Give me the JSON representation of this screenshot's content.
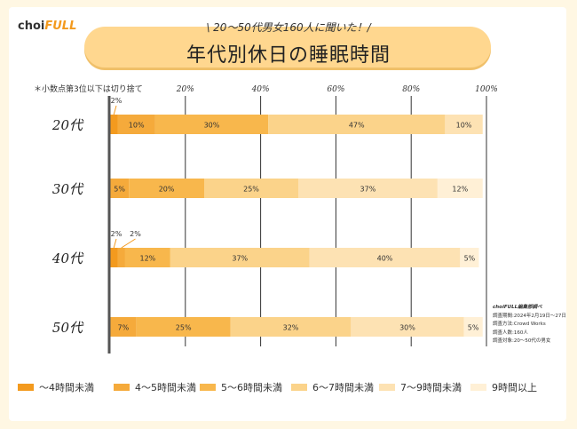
{
  "logo": {
    "text_main": "choi",
    "text_accent": "FULL"
  },
  "header": {
    "subtitle": "\\ 20〜50代男女160人に聞いた！/",
    "title": "年代別休日の睡眠時間"
  },
  "note": "＊小数点第3位以下は切り捨て",
  "attribution": [
    "choiFULL編集部調べ",
    "調査期間:2024年2月19日〜27日",
    "調査方法:Crowd Works",
    "調査人数:160人",
    "調査対象:20〜50代の男女"
  ],
  "colors": {
    "background": "#fff7e3",
    "axis": "#555555",
    "grid": "#333333"
  },
  "chart_data": {
    "type": "bar",
    "orientation": "horizontal",
    "stacked": true,
    "categories": [
      "20代",
      "30代",
      "40代",
      "50代"
    ],
    "x_ticks": [
      "20%",
      "40%",
      "60%",
      "80%",
      "100%"
    ],
    "xlim": [
      0,
      100
    ],
    "series": [
      {
        "name": "〜4時間未満",
        "color": "#f39a1e",
        "values": [
          2,
          0,
          2,
          0
        ],
        "labels": [
          "2%",
          "",
          "2%",
          ""
        ]
      },
      {
        "name": "4〜5時間未満",
        "color": "#f5aa3b",
        "values": [
          10,
          5,
          2,
          7
        ],
        "labels": [
          "10%",
          "5%",
          "2%",
          "7%"
        ]
      },
      {
        "name": "5〜6時間未満",
        "color": "#f8b74c",
        "values": [
          30,
          20,
          12,
          25
        ],
        "labels": [
          "30%",
          "20%",
          "12%",
          "25%"
        ]
      },
      {
        "name": "6〜7時間未満",
        "color": "#fbd38a",
        "values": [
          47,
          25,
          37,
          32
        ],
        "labels": [
          "47%",
          "25%",
          "37%",
          "32%"
        ]
      },
      {
        "name": "7〜9時間未満",
        "color": "#fde2b3",
        "values": [
          10,
          37,
          40,
          30
        ],
        "labels": [
          "10%",
          "37%",
          "40%",
          "30%"
        ]
      },
      {
        "name": "9時間以上",
        "color": "#fff0d6",
        "values": [
          0,
          12,
          5,
          5
        ],
        "labels": [
          "",
          "12%",
          "5%",
          "5%"
        ]
      }
    ]
  }
}
